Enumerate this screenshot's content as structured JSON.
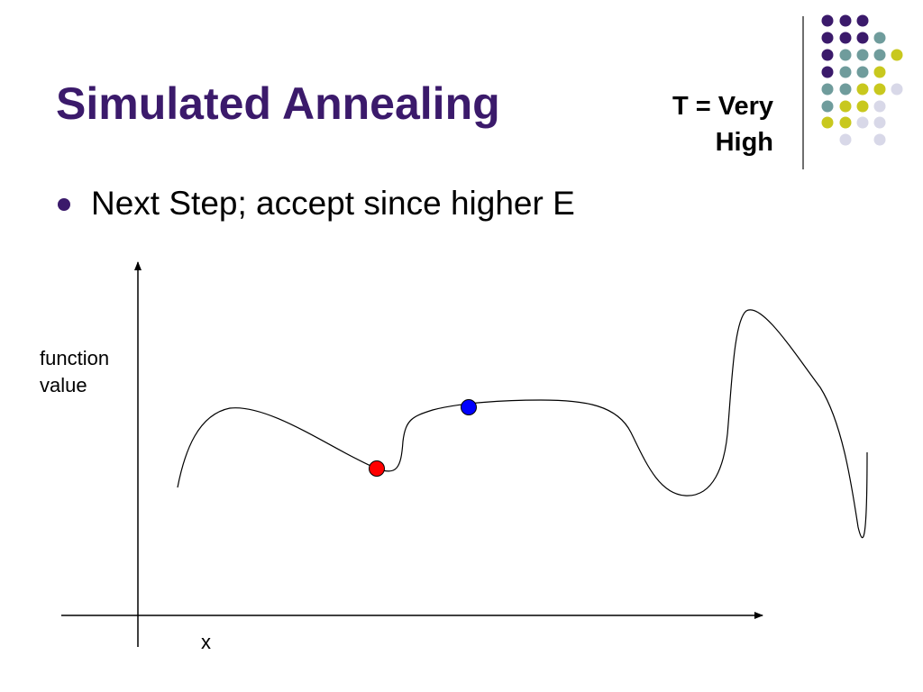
{
  "slide": {
    "title": "Simulated Annealing",
    "temperature_line1": "T = Very",
    "temperature_line2": "High",
    "bullets": [
      "Next Step; accept since higher E"
    ]
  },
  "diagram": {
    "ylabel_line1": "function",
    "ylabel_line2": "value",
    "xlabel": "x",
    "current_point_color": "#ff0000",
    "next_point_color": "#0000ff",
    "curve_color": "#000000"
  },
  "decor": {
    "dot_colors": {
      "purple": "#3b1a6b",
      "teal": "#6f9c9c",
      "yellow": "#c8c81e",
      "lavender": "#d8d8e8"
    }
  }
}
